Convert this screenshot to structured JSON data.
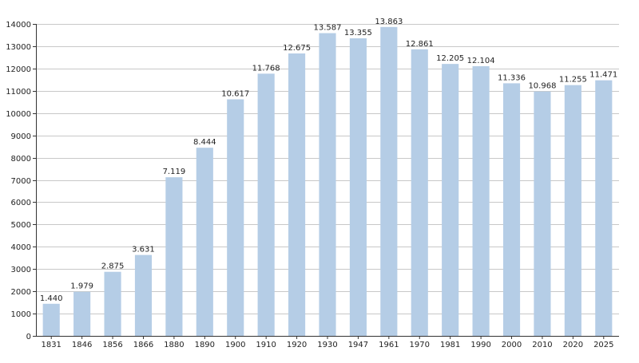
{
  "chart_data": {
    "type": "bar",
    "categories": [
      "1831",
      "1846",
      "1856",
      "1866",
      "1880",
      "1890",
      "1900",
      "1910",
      "1920",
      "1930",
      "1947",
      "1961",
      "1970",
      "1981",
      "1990",
      "2000",
      "2010",
      "2020",
      "2025"
    ],
    "values": [
      1440,
      1979,
      2875,
      3631,
      7119,
      8444,
      10617,
      11768,
      12675,
      13587,
      13355,
      13863,
      12861,
      12205,
      12104,
      11336,
      10968,
      11255,
      11471
    ],
    "data_labels": [
      "1.440",
      "1.979",
      "2.875",
      "3.631",
      "7.119",
      "8.444",
      "10.617",
      "11.768",
      "12.675",
      "13.587",
      "13.355",
      "13.863",
      "12.861",
      "12.205",
      "12.104",
      "11.336",
      "10.968",
      "11.255",
      "11.471"
    ],
    "yticks": [
      0,
      1000,
      2000,
      3000,
      4000,
      5000,
      6000,
      7000,
      8000,
      9000,
      10000,
      11000,
      12000,
      13000,
      14000
    ],
    "ylim": [
      0,
      14000
    ],
    "grid": true,
    "legend": "none",
    "colors": {
      "bar": "#b5cde6",
      "grid": "#c8c8c8",
      "axis": "#333333",
      "text": "#222222"
    }
  }
}
